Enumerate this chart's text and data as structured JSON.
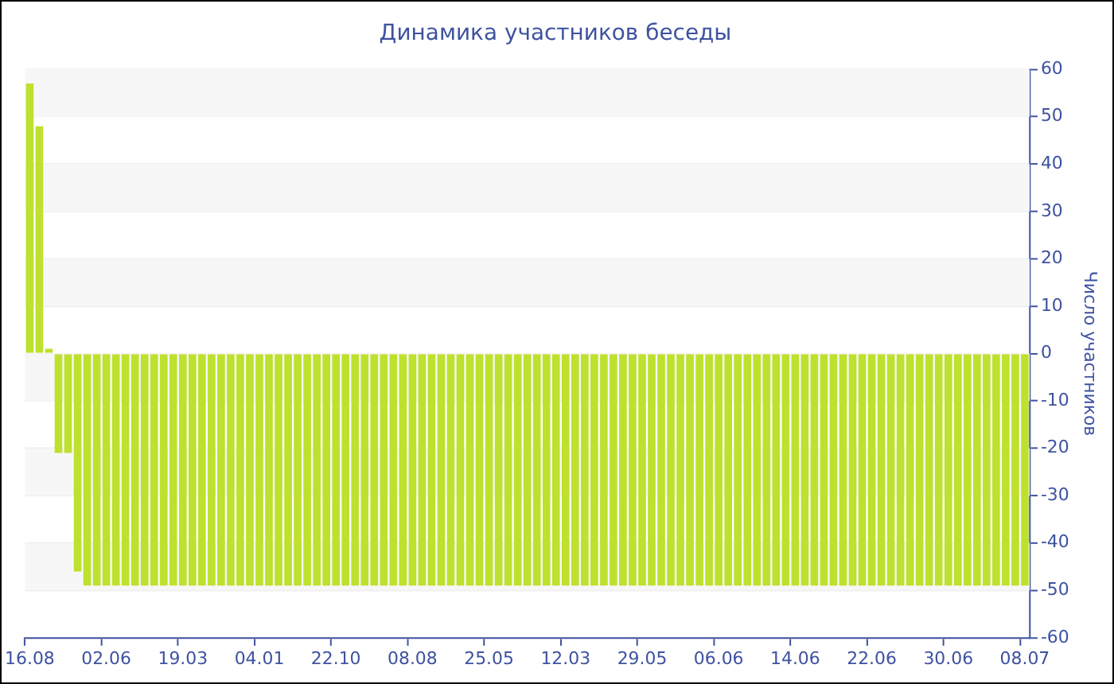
{
  "chart_data": {
    "type": "bar",
    "title": "Динамика участников беседы",
    "ylabel": "Число участников",
    "categories": [
      "16.08",
      null,
      null,
      null,
      null,
      null,
      null,
      null,
      "02.06",
      null,
      null,
      null,
      null,
      null,
      null,
      null,
      "19.03",
      null,
      null,
      null,
      null,
      null,
      null,
      null,
      "04.01",
      null,
      null,
      null,
      null,
      null,
      null,
      null,
      "22.10",
      null,
      null,
      null,
      null,
      null,
      null,
      null,
      "08.08",
      null,
      null,
      null,
      null,
      null,
      null,
      null,
      "25.05",
      null,
      null,
      null,
      null,
      null,
      null,
      null,
      "12.03",
      null,
      null,
      null,
      null,
      null,
      null,
      null,
      "29.05",
      null,
      null,
      null,
      null,
      null,
      null,
      null,
      "06.06",
      null,
      null,
      null,
      null,
      null,
      null,
      null,
      "14.06",
      null,
      null,
      null,
      null,
      null,
      null,
      null,
      "22.06",
      null,
      null,
      null,
      null,
      null,
      null,
      null,
      "30.06",
      null,
      null,
      null,
      null,
      null,
      null,
      null,
      "08.07"
    ],
    "values": [
      57,
      48,
      1,
      -21,
      -21,
      -46,
      -49,
      -49,
      -49,
      -49,
      -49,
      -49,
      -49,
      -49,
      -49,
      -49,
      -49,
      -49,
      -49,
      -49,
      -49,
      -49,
      -49,
      -49,
      -49,
      -49,
      -49,
      -49,
      -49,
      -49,
      -49,
      -49,
      -49,
      -49,
      -49,
      -49,
      -49,
      -49,
      -49,
      -49,
      -49,
      -49,
      -49,
      -49,
      -49,
      -49,
      -49,
      -49,
      -49,
      -49,
      -49,
      -49,
      -49,
      -49,
      -49,
      -49,
      -49,
      -49,
      -49,
      -49,
      -49,
      -49,
      -49,
      -49,
      -49,
      -49,
      -49,
      -49,
      -49,
      -49,
      -49,
      -49,
      -49,
      -49,
      -49,
      -49,
      -49,
      -49,
      -49,
      -49,
      -49,
      -49,
      -49,
      -49,
      -49,
      -49,
      -49,
      -49,
      -49,
      -49,
      -49,
      -49,
      -49,
      -49,
      -49,
      -49,
      -49,
      -49,
      -49,
      -49,
      -49,
      -49,
      -49,
      -49,
      -49
    ],
    "color": "#bde12d",
    "ylim": [
      -60,
      60
    ],
    "yticks": [
      -60,
      -50,
      -40,
      -30,
      -20,
      -10,
      0,
      10,
      20,
      30,
      40,
      50,
      60
    ],
    "grid": "y",
    "legend": false
  }
}
